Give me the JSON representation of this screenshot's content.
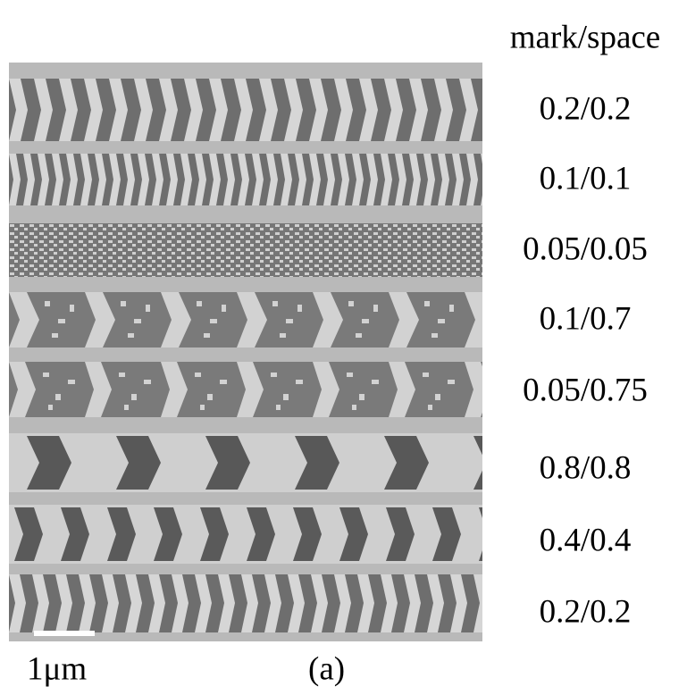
{
  "header": "mark/space",
  "labels": [
    "0.2/0.2",
    "0.1/0.1",
    "0.05/0.05",
    "0.1/0.7",
    "0.05/0.75",
    "0.8/0.8",
    "0.4/0.4",
    "0.2/0.2"
  ],
  "scale_bar": "1μm",
  "panel": "(a)"
}
